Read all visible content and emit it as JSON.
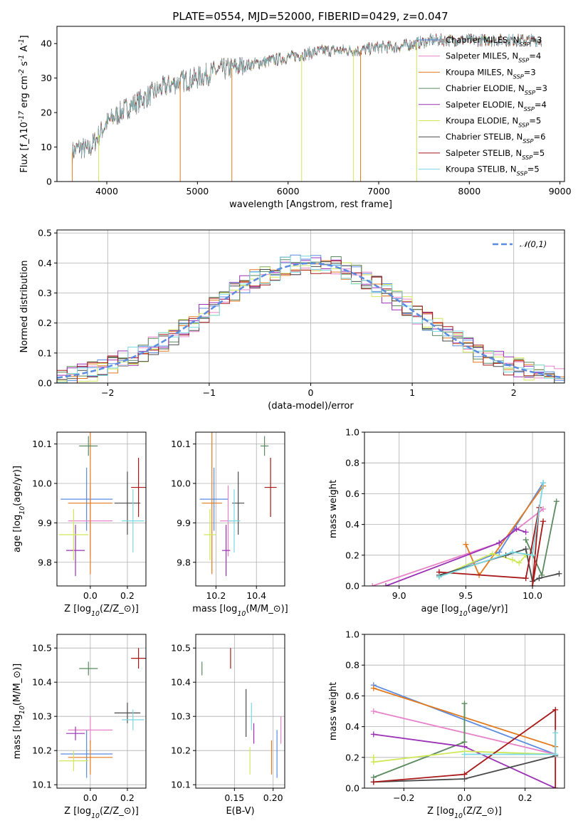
{
  "figure": {
    "title": "PLATE=0554, MJD=52000, FIBERID=0429, z=0.047"
  },
  "series_styles": [
    {
      "name": "Chabrier MILES, N$_{SSP}$=3",
      "label_main": "Chabrier MILES, N",
      "label_sub": "SSP",
      "label_end": "=3",
      "color": "#5b8be0"
    },
    {
      "name": "Salpeter MILES, N$_{SSP}$=4",
      "label_main": "Salpeter MILES, N",
      "label_sub": "SSP",
      "label_end": "=4",
      "color": "#e882c8"
    },
    {
      "name": "Kroupa MILES, N$_{SSP}$=3",
      "label_main": "Kroupa MILES, N",
      "label_sub": "SSP",
      "label_end": "=3",
      "color": "#e27a1d"
    },
    {
      "name": "Chabrier ELODIE, N$_{SSP}$=3",
      "label_main": "Chabrier ELODIE, N",
      "label_sub": "SSP",
      "label_end": "=3",
      "color": "#5a8a5e"
    },
    {
      "name": "Salpeter ELODIE, N$_{SSP}$=4",
      "label_main": "Salpeter ELODIE, N",
      "label_sub": "SSP",
      "label_end": "=4",
      "color": "#9a30b4"
    },
    {
      "name": "Kroupa ELODIE, N$_{SSP}$=5",
      "label_main": "Kroupa ELODIE, N",
      "label_sub": "SSP",
      "label_end": "=5",
      "color": "#cfe85a"
    },
    {
      "name": "Chabrier STELIB, N$_{SSP}$=6",
      "label_main": "Chabrier STELIB, N",
      "label_sub": "SSP",
      "label_end": "=6",
      "color": "#4a4a4a"
    },
    {
      "name": "Salpeter STELIB, N$_{SSP}$=5",
      "label_main": "Salpeter STELIB, N",
      "label_sub": "SSP",
      "label_end": "=5",
      "color": "#a81818"
    },
    {
      "name": "Kroupa STELIB, N$_{SSP}$=5",
      "label_main": "Kroupa STELIB, N",
      "label_sub": "SSP",
      "label_end": "=5",
      "color": "#7ad8e0"
    }
  ],
  "chart_data": [
    {
      "id": "spectrum",
      "type": "line",
      "xlabel": "wavelength [Angstrom, rest frame]",
      "ylabel": "Flux [f$_\\lambda$10$^{-17}$ erg cm$^{-2}$ s$^{-1}$ A$^{-1}$]",
      "xlim": [
        3450,
        9050
      ],
      "ylim": [
        0,
        45
      ],
      "xticks": [
        4000,
        5000,
        6000,
        7000,
        8000,
        9000
      ],
      "yticks": [
        0,
        10,
        20,
        30,
        40
      ],
      "observed_continuum": {
        "x": [
          3600,
          3700,
          3800,
          3900,
          4000,
          4100,
          4200,
          4400,
          4600,
          4800,
          5000,
          5200,
          5400,
          5600,
          5800,
          6000,
          6200,
          6400,
          6600,
          6800,
          7000,
          7200,
          7400,
          7600,
          7800,
          8000,
          8200,
          8400,
          8600,
          8800
        ],
        "y": [
          8,
          10,
          9,
          13,
          17,
          19,
          21,
          24,
          27,
          29,
          30,
          32,
          33,
          34,
          35,
          36,
          37,
          38,
          38,
          38,
          39,
          39,
          40,
          41,
          41,
          41,
          41,
          41,
          41,
          41
        ]
      },
      "spike_at": [
        3620,
        3910,
        6800,
        7420,
        4810,
        6150,
        5380,
        6720
      ],
      "grid": false
    },
    {
      "id": "residuals",
      "type": "histogram",
      "xlabel": "(data-model)/error",
      "ylabel": "Normed distribution",
      "xlim": [
        -2.5,
        2.5
      ],
      "ylim": [
        0,
        0.51
      ],
      "xticks": [
        -2,
        -1,
        0,
        1,
        2
      ],
      "yticks": [
        0.0,
        0.1,
        0.2,
        0.3,
        0.4,
        0.5
      ],
      "legend": "$\\mathcal{N}(0,1)$",
      "legend_position": "top-right",
      "gaussian": {
        "mean": 0,
        "sigma": 1
      },
      "bin_width": 0.1,
      "grid": true
    },
    {
      "id": "z_vs_age",
      "type": "errorbar",
      "xlabel": "Z [log$_{10}$(Z/Z$_\\odot$)]",
      "ylabel": "age  [log$_{10}$(age/yr)]",
      "xlim": [
        -0.18,
        0.3
      ],
      "ylim": [
        9.74,
        10.13
      ],
      "xticks": [
        0.0,
        0.2
      ],
      "yticks": [
        9.8,
        9.9,
        10.0,
        10.1
      ],
      "points": [
        {
          "x": -0.02,
          "y": 9.96,
          "xerr": 0.14,
          "yerr": 0.08
        },
        {
          "x": 0.0,
          "y": 9.905,
          "xerr": 0.12,
          "yerr": 0.09
        },
        {
          "x": 0.0,
          "y": 9.95,
          "xerr": 0.12,
          "yerr": 0.18
        },
        {
          "x": -0.01,
          "y": 10.095,
          "xerr": 0.05,
          "yerr": 0.025
        },
        {
          "x": -0.08,
          "y": 9.83,
          "xerr": 0.05,
          "yerr": 0.065
        },
        {
          "x": -0.09,
          "y": 9.87,
          "xerr": 0.08,
          "yerr": 0.065
        },
        {
          "x": 0.2,
          "y": 9.95,
          "xerr": 0.07,
          "yerr": 0.08
        },
        {
          "x": 0.26,
          "y": 9.99,
          "xerr": 0.04,
          "yerr": 0.075
        },
        {
          "x": 0.23,
          "y": 9.905,
          "xerr": 0.06,
          "yerr": 0.08
        }
      ],
      "grid": true
    },
    {
      "id": "mass_vs_age",
      "type": "errorbar",
      "xlabel": "mass [log$_{10}$(M/M$_\\odot$)]",
      "ylabel": "",
      "xlim": [
        10.1,
        10.54
      ],
      "ylim": [
        9.74,
        10.13
      ],
      "xticks": [
        10.2,
        10.4
      ],
      "yticks": [
        9.8,
        9.9,
        10.0,
        10.1
      ],
      "points": [
        {
          "x": 10.19,
          "y": 9.96,
          "xerr": 0.07,
          "yerr": 0.08
        },
        {
          "x": 10.26,
          "y": 9.905,
          "xerr": 0.04,
          "yerr": 0.09
        },
        {
          "x": 10.18,
          "y": 9.95,
          "xerr": 0.05,
          "yerr": 0.18
        },
        {
          "x": 10.44,
          "y": 10.095,
          "xerr": 0.02,
          "yerr": 0.025
        },
        {
          "x": 10.25,
          "y": 9.83,
          "xerr": 0.02,
          "yerr": 0.065
        },
        {
          "x": 10.17,
          "y": 9.87,
          "xerr": 0.03,
          "yerr": 0.065
        },
        {
          "x": 10.31,
          "y": 9.95,
          "xerr": 0.03,
          "yerr": 0.08
        },
        {
          "x": 10.47,
          "y": 9.99,
          "xerr": 0.03,
          "yerr": 0.075
        },
        {
          "x": 10.29,
          "y": 9.905,
          "xerr": 0.03,
          "yerr": 0.08
        }
      ],
      "grid": true
    },
    {
      "id": "age_vs_massweight",
      "type": "line",
      "xlabel": "age  [log$_{10}$(age/yr)]",
      "ylabel": "mass weight",
      "xlim": [
        8.74,
        10.24
      ],
      "ylim": [
        0.0,
        1.0
      ],
      "xticks": [
        9.0,
        9.5,
        10.0
      ],
      "yticks": [
        0.0,
        0.2,
        0.4,
        0.6,
        0.8,
        1.0
      ],
      "series": [
        {
          "x": [
            9.3,
            9.75,
            10.08
          ],
          "y": [
            0.06,
            0.22,
            0.67
          ]
        },
        {
          "x": [
            8.8,
            9.75,
            10.08
          ],
          "y": [
            0.0,
            0.28,
            0.5
          ]
        },
        {
          "x": [
            9.5,
            9.6,
            10.08
          ],
          "y": [
            0.27,
            0.07,
            0.65
          ]
        },
        {
          "x": [
            9.95,
            10.07,
            10.18
          ],
          "y": [
            0.3,
            0.07,
            0.55
          ]
        },
        {
          "x": [
            8.9,
            9.75,
            9.88,
            9.95
          ],
          "y": [
            0.0,
            0.28,
            0.37,
            0.35
          ]
        },
        {
          "x": [
            9.3,
            9.7,
            9.85,
            9.9,
            9.95
          ],
          "y": [
            0.06,
            0.21,
            0.17,
            0.15,
            0.2
          ]
        },
        {
          "x": [
            9.3,
            9.8,
            9.95,
            10.0,
            10.05,
            10.2
          ],
          "y": [
            0.07,
            0.2,
            0.24,
            0.03,
            0.05,
            0.08
          ]
        },
        {
          "x": [
            9.3,
            9.95,
            10.05,
            10.0,
            10.08
          ],
          "y": [
            0.09,
            0.05,
            0.51,
            0.0,
            0.42
          ]
        },
        {
          "x": [
            9.3,
            9.85,
            10.0,
            10.08
          ],
          "y": [
            0.06,
            0.22,
            0.2,
            0.67
          ]
        }
      ],
      "grid": true
    },
    {
      "id": "z_vs_mass",
      "type": "errorbar",
      "xlabel": "Z [log$_{10}$(Z/Z$_\\odot$)]",
      "ylabel": "mass [log$_{10}$(M/M$_\\odot$)]",
      "xlim": [
        -0.18,
        0.3
      ],
      "ylim": [
        10.09,
        10.54
      ],
      "xticks": [
        0.0,
        0.2
      ],
      "yticks": [
        10.1,
        10.2,
        10.3,
        10.4,
        10.5
      ],
      "points": [
        {
          "x": -0.02,
          "y": 10.19,
          "xerr": 0.14,
          "yerr": 0.07
        },
        {
          "x": 0.0,
          "y": 10.26,
          "xerr": 0.12,
          "yerr": 0.04
        },
        {
          "x": 0.0,
          "y": 10.18,
          "xerr": 0.12,
          "yerr": 0.05
        },
        {
          "x": -0.01,
          "y": 10.44,
          "xerr": 0.05,
          "yerr": 0.02
        },
        {
          "x": -0.08,
          "y": 10.25,
          "xerr": 0.05,
          "yerr": 0.02
        },
        {
          "x": -0.09,
          "y": 10.17,
          "xerr": 0.08,
          "yerr": 0.03
        },
        {
          "x": 0.2,
          "y": 10.31,
          "xerr": 0.07,
          "yerr": 0.03
        },
        {
          "x": 0.26,
          "y": 10.47,
          "xerr": 0.04,
          "yerr": 0.03
        },
        {
          "x": 0.23,
          "y": 10.29,
          "xerr": 0.06,
          "yerr": 0.03
        }
      ],
      "grid": true
    },
    {
      "id": "ebv_vs_mass",
      "type": "errorbar",
      "xlabel": "E(B-V)",
      "ylabel": "",
      "xlim": [
        0.1,
        0.215
      ],
      "ylim": [
        10.09,
        10.54
      ],
      "xticks": [
        0.15,
        0.2
      ],
      "yticks": [
        10.1,
        10.2,
        10.3,
        10.4,
        10.5
      ],
      "points": [
        {
          "x": 0.205,
          "y": 10.19,
          "xerr": 0.0,
          "yerr": 0.07
        },
        {
          "x": 0.21,
          "y": 10.26,
          "xerr": 0.0,
          "yerr": 0.04
        },
        {
          "x": 0.198,
          "y": 10.18,
          "xerr": 0.0,
          "yerr": 0.05
        },
        {
          "x": 0.108,
          "y": 10.44,
          "xerr": 0.0,
          "yerr": 0.02
        },
        {
          "x": 0.175,
          "y": 10.25,
          "xerr": 0.0,
          "yerr": 0.03
        },
        {
          "x": 0.17,
          "y": 10.17,
          "xerr": 0.0,
          "yerr": 0.04
        },
        {
          "x": 0.165,
          "y": 10.31,
          "xerr": 0.0,
          "yerr": 0.07
        },
        {
          "x": 0.145,
          "y": 10.47,
          "xerr": 0.0,
          "yerr": 0.03
        },
        {
          "x": 0.172,
          "y": 10.3,
          "xerr": 0.0,
          "yerr": 0.04
        }
      ],
      "grid": true
    },
    {
      "id": "z_vs_massweight",
      "type": "line",
      "xlabel": "Z [log$_{10}$(Z/Z$_\\odot$)]",
      "ylabel": "mass weight",
      "xlim": [
        -0.33,
        0.33
      ],
      "ylim": [
        0.0,
        1.0
      ],
      "xticks": [
        -0.2,
        0.0,
        0.2
      ],
      "yticks": [
        0.0,
        0.2,
        0.4,
        0.6,
        0.8,
        1.0
      ],
      "series": [
        {
          "x": [
            -0.3,
            0.3
          ],
          "y": [
            0.67,
            0.22
          ]
        },
        {
          "x": [
            -0.3,
            0.3
          ],
          "y": [
            0.5,
            0.22
          ]
        },
        {
          "x": [
            -0.3,
            0.3
          ],
          "y": [
            0.65,
            0.27
          ]
        },
        {
          "x": [
            -0.3,
            0.0,
            0.0
          ],
          "y": [
            0.07,
            0.3,
            0.55
          ]
        },
        {
          "x": [
            -0.3,
            0.0,
            0.3
          ],
          "y": [
            0.35,
            0.27,
            0.0
          ]
        },
        {
          "x": [
            -0.3,
            -0.3,
            0.0,
            0.3
          ],
          "y": [
            0.2,
            0.17,
            0.24,
            0.22
          ]
        },
        {
          "x": [
            -0.3,
            0.0,
            0.3
          ],
          "y": [
            0.04,
            0.06,
            0.21
          ]
        },
        {
          "x": [
            -0.3,
            0.0,
            0.3,
            0.3
          ],
          "y": [
            0.04,
            0.09,
            0.51,
            0.0
          ]
        },
        {
          "x": [
            0.0,
            0.3,
            0.3
          ],
          "y": [
            0.22,
            0.22,
            0.36
          ]
        }
      ],
      "grid": true
    }
  ]
}
